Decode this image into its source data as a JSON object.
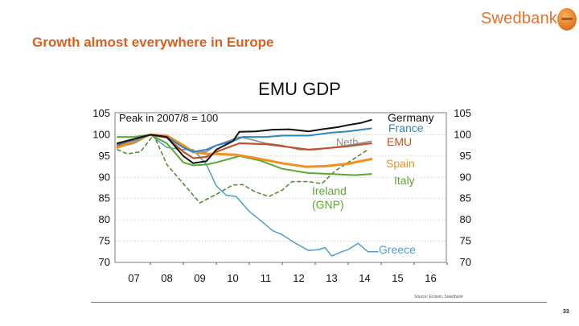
{
  "header": {
    "brand_name": "Swedbank",
    "brand_logo_icon": "swedbank-oak-logo-icon",
    "brand_color": "#e3722d"
  },
  "slide": {
    "title": "Growth almost everywhere in Europe",
    "title_color": "#d9601f",
    "source": "Source: Ecowin, Swedbank",
    "page_number": "33"
  },
  "chart_data": {
    "type": "line",
    "title": "EMU GDP",
    "annotation": "Peak in 2007/8 = 100",
    "xlabel": "",
    "ylabel": "",
    "xlim": [
      2007,
      2017
    ],
    "ylim": [
      70,
      105
    ],
    "x_tick_labels": [
      "07",
      "08",
      "09",
      "10",
      "11",
      "12",
      "13",
      "14",
      "15",
      "16"
    ],
    "y_tick_labels": [
      "105",
      "100",
      "95",
      "90",
      "85",
      "80",
      "75",
      "70"
    ],
    "y_ticks": [
      105,
      100,
      95,
      90,
      85,
      80,
      75,
      70
    ],
    "grid": "horizontal-dotted",
    "legend": "inline-labels-right",
    "series": [
      {
        "name": "Germany",
        "label": "Germany",
        "color": "#111111",
        "dashed": false,
        "x": [
          2007.0,
          2007.5,
          2008.0,
          2008.5,
          2009.0,
          2009.3,
          2009.7,
          2010.0,
          2010.5,
          2010.7,
          2011.2,
          2011.7,
          2012.2,
          2012.8,
          2013.2,
          2013.7,
          2014.0,
          2014.4,
          2014.7
        ],
        "y": [
          98.0,
          99.0,
          100.0,
          99.5,
          95.0,
          93.3,
          93.8,
          96.5,
          98.5,
          100.7,
          100.8,
          101.2,
          101.3,
          100.8,
          101.3,
          101.8,
          102.3,
          102.8,
          103.5
        ]
      },
      {
        "name": "France",
        "label": "France",
        "color": "#2f86c4",
        "dashed": false,
        "x": [
          2007.0,
          2007.5,
          2008.0,
          2008.5,
          2009.0,
          2009.3,
          2009.7,
          2010.0,
          2010.5,
          2010.8,
          2011.5,
          2012.0,
          2012.8,
          2013.5,
          2014.0,
          2014.7
        ],
        "y": [
          97.8,
          98.8,
          100.0,
          99.5,
          97.0,
          96.0,
          96.5,
          97.5,
          98.5,
          99.5,
          99.5,
          99.8,
          99.8,
          100.5,
          100.8,
          101.5
        ]
      },
      {
        "name": "EMU",
        "label": "EMU",
        "color": "#c0532a",
        "dashed": false,
        "x": [
          2007.0,
          2007.5,
          2008.0,
          2008.5,
          2009.0,
          2009.3,
          2009.7,
          2010.0,
          2010.7,
          2011.5,
          2012.0,
          2012.8,
          2013.3,
          2014.0,
          2014.7
        ],
        "y": [
          97.5,
          98.8,
          100.0,
          99.3,
          96.0,
          94.5,
          94.8,
          96.0,
          98.0,
          97.8,
          97.3,
          96.5,
          96.8,
          97.3,
          98.0
        ]
      },
      {
        "name": "Netherlands",
        "label": "Neth.",
        "color": "#8c8c8c",
        "dashed": false,
        "x": [
          2007.0,
          2007.5,
          2008.0,
          2008.5,
          2009.0,
          2009.3,
          2009.7,
          2010.0,
          2010.7,
          2011.0,
          2011.5,
          2012.0,
          2012.5,
          2013.0,
          2013.5,
          2014.0,
          2014.7
        ],
        "y": [
          97.0,
          98.0,
          100.0,
          99.5,
          97.0,
          95.8,
          96.0,
          97.5,
          99.5,
          99.0,
          98.0,
          97.5,
          96.5,
          96.5,
          97.0,
          97.5,
          98.5
        ]
      },
      {
        "name": "Spain",
        "label": "Spain",
        "color": "#f0901e",
        "dashed": false,
        "x": [
          2007.0,
          2007.5,
          2008.0,
          2008.5,
          2009.0,
          2009.3,
          2009.7,
          2010.0,
          2010.6,
          2011.2,
          2012.0,
          2012.7,
          2013.3,
          2014.0,
          2014.7
        ],
        "y": [
          97.0,
          98.5,
          100.0,
          99.8,
          97.5,
          96.0,
          95.5,
          95.5,
          95.3,
          94.5,
          93.3,
          92.5,
          92.6,
          93.2,
          94.3
        ]
      },
      {
        "name": "Italy",
        "label": "Italy",
        "color": "#5aa832",
        "dashed": false,
        "x": [
          2007.0,
          2007.5,
          2008.0,
          2008.5,
          2009.0,
          2009.3,
          2009.7,
          2010.0,
          2010.7,
          2011.3,
          2012.0,
          2012.8,
          2013.5,
          2014.2,
          2014.7
        ],
        "y": [
          99.5,
          99.5,
          100.0,
          98.0,
          93.5,
          92.8,
          93.0,
          93.5,
          95.0,
          94.0,
          92.0,
          91.0,
          90.8,
          90.5,
          90.8
        ]
      },
      {
        "name": "Ireland (GNP)",
        "label": "Ireland",
        "label2": "(GNP)",
        "color": "#5a8a3a",
        "dashed": true,
        "x": [
          2007.0,
          2007.3,
          2007.7,
          2008.1,
          2008.5,
          2009.0,
          2009.5,
          2010.0,
          2010.5,
          2010.8,
          2011.2,
          2011.6,
          2012.0,
          2012.3,
          2012.8,
          2013.2,
          2013.6,
          2014.0,
          2014.6
        ],
        "y": [
          96.5,
          95.5,
          96.0,
          100.0,
          93.0,
          88.5,
          84.0,
          86.0,
          88.2,
          88.3,
          86.5,
          85.5,
          87.0,
          89.0,
          89.0,
          88.5,
          91.5,
          93.5,
          96.5
        ]
      },
      {
        "name": "Greece",
        "label": "Greece",
        "color": "#4ea0c8",
        "dashed": false,
        "x": [
          2007.0,
          2007.5,
          2008.0,
          2008.5,
          2009.0,
          2009.3,
          2009.7,
          2010.0,
          2010.3,
          2010.6,
          2011.0,
          2011.4,
          2011.7,
          2012.0,
          2012.4,
          2012.8,
          2013.1,
          2013.3,
          2013.5,
          2013.8,
          2014.0,
          2014.3,
          2014.6,
          2014.9
        ],
        "y": [
          98.0,
          98.5,
          100.0,
          97.0,
          96.5,
          96.5,
          93.0,
          88.0,
          85.8,
          85.5,
          82.0,
          79.5,
          77.5,
          76.5,
          74.5,
          72.8,
          73.0,
          73.5,
          71.5,
          72.5,
          73.0,
          74.5,
          72.5,
          72.5
        ]
      }
    ]
  }
}
